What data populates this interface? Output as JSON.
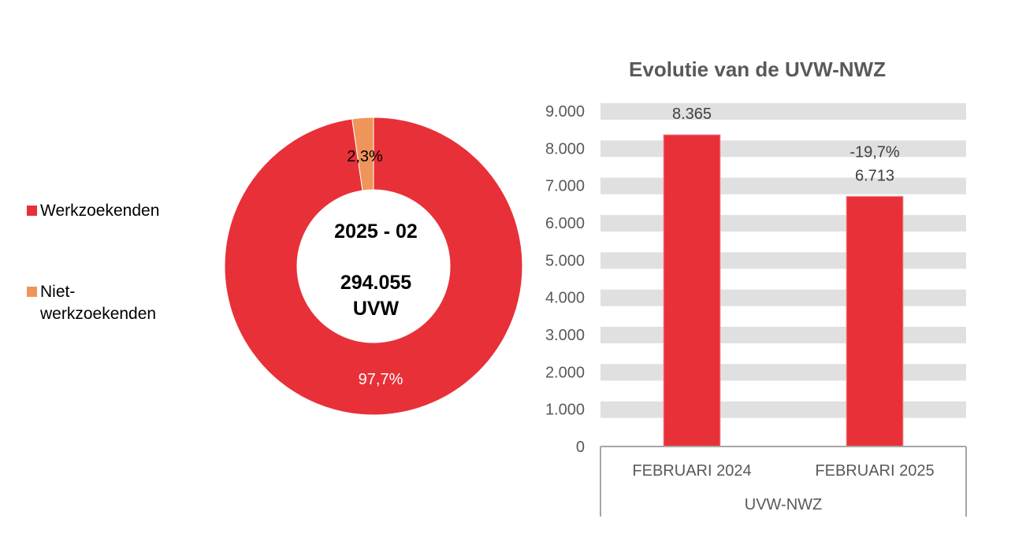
{
  "colors": {
    "red": "#E83038",
    "orange": "#F0955A",
    "band": "#E0E0E0",
    "text": "#595959",
    "axis": "#A6A6A6"
  },
  "chart_data": [
    {
      "type": "pie",
      "variant": "donut",
      "legend_position": "left",
      "center_label": {
        "period": "2025 - 02",
        "total": "294.055",
        "unit": "UVW"
      },
      "categories": [
        "Werkzoekenden",
        "Niet-werkzoekenden"
      ],
      "legend_lines": [
        [
          "Werkzoekenden"
        ],
        [
          "Niet-",
          "werkzoekenden"
        ]
      ],
      "values": [
        97.7,
        2.3
      ],
      "data_labels": [
        "97,7%",
        "2,3%"
      ]
    },
    {
      "type": "bar",
      "title": "Evolutie van de UVW-NWZ",
      "categories": [
        "FEBRUARI 2024",
        "FEBRUARI 2025"
      ],
      "group_label": "UVW-NWZ",
      "values": [
        8365,
        6713
      ],
      "data_labels": [
        "8.365",
        "6.713"
      ],
      "change_label": "-19,7%",
      "ylim": [
        0,
        9000
      ],
      "yticks": [
        0,
        1000,
        2000,
        3000,
        4000,
        5000,
        6000,
        7000,
        8000,
        9000
      ],
      "ytick_labels": [
        "0",
        "1.000",
        "2.000",
        "3.000",
        "4.000",
        "5.000",
        "6.000",
        "7.000",
        "8.000",
        "9.000"
      ],
      "grid": true
    }
  ]
}
